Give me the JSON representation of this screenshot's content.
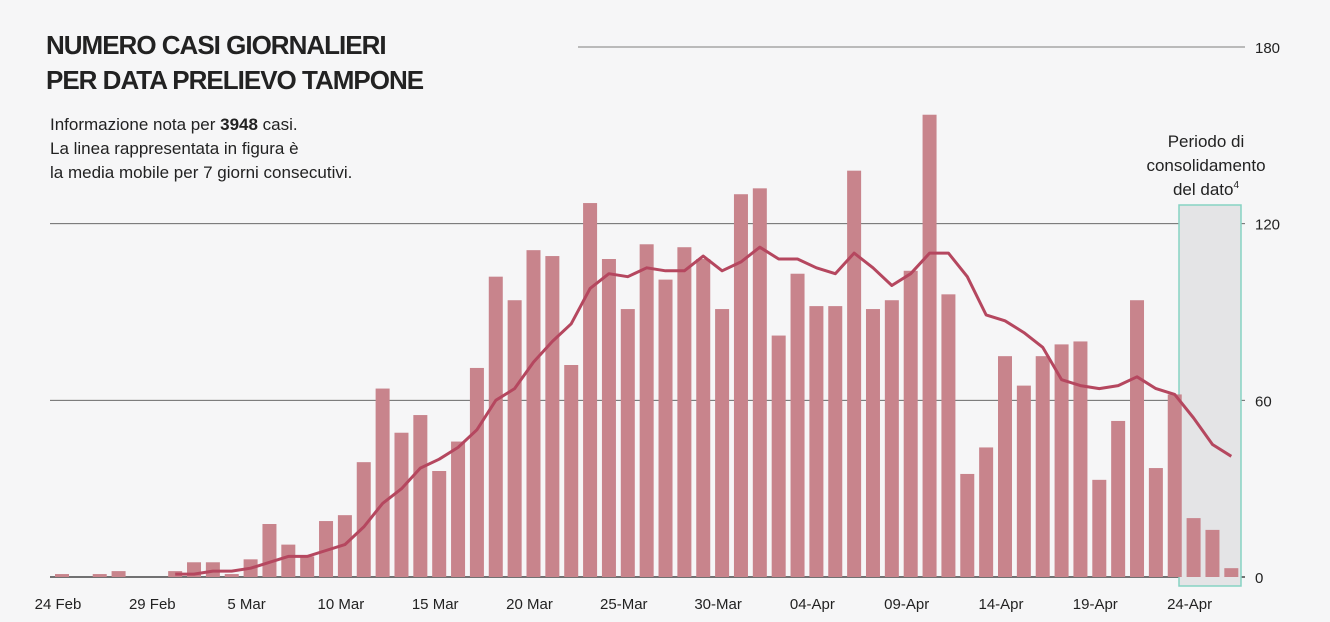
{
  "chart_data": {
    "type": "bar_line",
    "title": [
      "NUMERO CASI GIORNALIERI",
      "PER DATA PRELIEVO TAMPONE"
    ],
    "subtitle": {
      "before": "Informazione nota per ",
      "bold": "3948",
      "after": " casi.",
      "lines": [
        "La linea rappresentata in figura è",
        "la media mobile per 7 giorni consecutivi."
      ]
    },
    "annotation": [
      "Periodo di",
      "consolidamento",
      "del dato"
    ],
    "annotation_note": "4",
    "categories": [
      "24 Feb",
      null,
      null,
      null,
      null,
      "29 Feb",
      null,
      null,
      null,
      null,
      "5 Mar",
      null,
      null,
      null,
      null,
      "10 Mar",
      null,
      null,
      null,
      null,
      "15 Mar",
      null,
      null,
      null,
      null,
      "20 Mar",
      null,
      null,
      null,
      null,
      "25-Mar",
      null,
      null,
      null,
      null,
      "30-Mar",
      null,
      null,
      null,
      null,
      "04-Apr",
      null,
      null,
      null,
      null,
      "09-Apr",
      null,
      null,
      null,
      null,
      "14-Apr",
      null,
      null,
      null,
      null,
      "19-Apr",
      null,
      null,
      null,
      null,
      "24-Apr",
      null,
      null
    ],
    "series": [
      {
        "type": "bar",
        "color": "#c8848c",
        "values": [
          1,
          0,
          1,
          2,
          0,
          0,
          2,
          5,
          5,
          1,
          6,
          18,
          11,
          7,
          19,
          21,
          39,
          64,
          49,
          55,
          36,
          46,
          71,
          102,
          94,
          111,
          109,
          72,
          127,
          108,
          91,
          113,
          101,
          112,
          108,
          91,
          130,
          132,
          82,
          103,
          92,
          92,
          138,
          91,
          94,
          104,
          157,
          96,
          35,
          44,
          75,
          65,
          75,
          79,
          80,
          33,
          53,
          94,
          37,
          62,
          20,
          16,
          3
        ]
      },
      {
        "type": "line",
        "color": "#b5475f",
        "values": [
          null,
          null,
          null,
          null,
          null,
          null,
          1,
          1,
          2,
          2,
          3,
          5,
          7,
          7,
          9,
          11,
          17,
          25,
          30,
          37,
          40,
          44,
          50,
          60,
          64,
          73,
          80,
          86,
          98,
          103,
          102,
          105,
          104,
          104,
          109,
          104,
          107,
          112,
          108,
          108,
          105,
          103,
          110,
          105,
          99,
          103,
          110,
          110,
          102,
          89,
          87,
          83,
          78,
          67,
          65,
          64,
          65,
          68,
          64,
          62,
          54,
          45,
          41
        ]
      }
    ],
    "ylim": [
      0,
      180
    ],
    "yticks": [
      0,
      60,
      120,
      180
    ],
    "grid": true
  }
}
